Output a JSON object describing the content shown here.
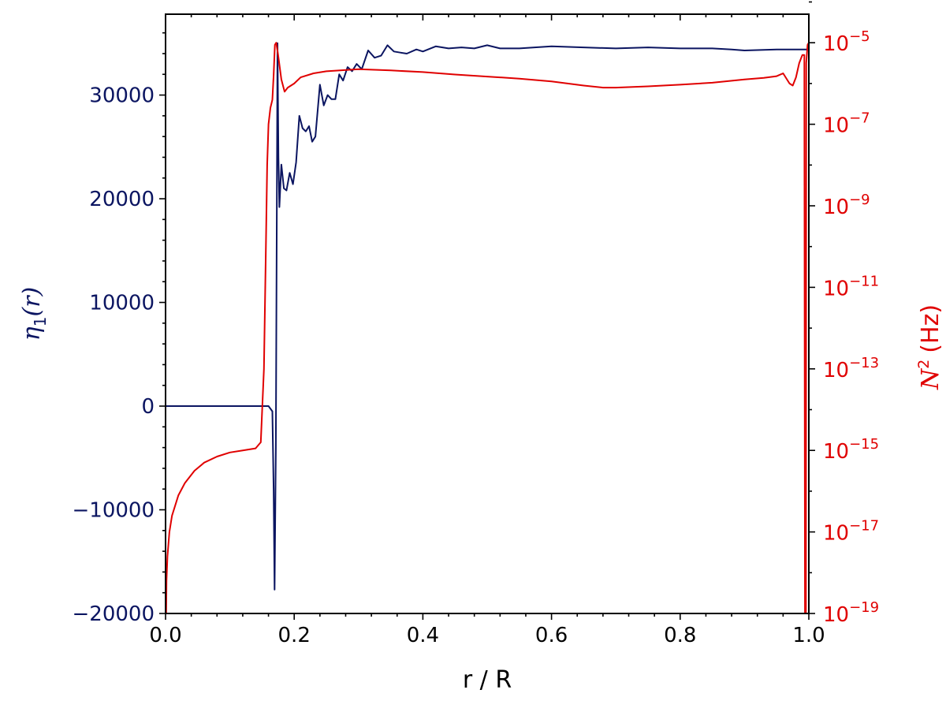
{
  "chart_data": {
    "type": "line",
    "xlabel": "r / R",
    "ylabel_left": {
      "symbol": "η",
      "subscript": "1",
      "arg": "(r)"
    },
    "ylabel_right": {
      "symbol": "N",
      "superscript": "2",
      "unit": "(Hz)"
    },
    "colors": {
      "left": "#0b1561",
      "right": "#e00000"
    },
    "xlim": [
      0.0,
      1.0
    ],
    "ylim_left": [
      -20000,
      37800
    ],
    "ylim_right_log10": [
      -19,
      -4.3
    ],
    "right_scale": "log",
    "grid": false,
    "legend": "none",
    "x_ticks": [
      "0.0",
      "0.2",
      "0.4",
      "0.6",
      "0.8",
      "1.0"
    ],
    "left_ticks": [
      "−20000",
      "−10000",
      "0",
      "10000",
      "20000",
      "30000"
    ],
    "right_ticks": [
      {
        "base": "10",
        "exp": "−19"
      },
      {
        "base": "10",
        "exp": "−17"
      },
      {
        "base": "10",
        "exp": "−15"
      },
      {
        "base": "10",
        "exp": "−13"
      },
      {
        "base": "10",
        "exp": "−11"
      },
      {
        "base": "10",
        "exp": "−9"
      },
      {
        "base": "10",
        "exp": "−7"
      },
      {
        "base": "10",
        "exp": "−5"
      }
    ],
    "series": [
      {
        "axis": "left",
        "points": [
          [
            0.0,
            0
          ],
          [
            0.05,
            0
          ],
          [
            0.1,
            0
          ],
          [
            0.16,
            0
          ],
          [
            0.166,
            -500
          ],
          [
            0.168,
            -8000
          ],
          [
            0.1695,
            -17700
          ],
          [
            0.1715,
            -4000
          ],
          [
            0.173,
            20000
          ],
          [
            0.174,
            35000
          ],
          [
            0.1755,
            24000
          ],
          [
            0.177,
            19200
          ],
          [
            0.18,
            23300
          ],
          [
            0.184,
            21000
          ],
          [
            0.188,
            20800
          ],
          [
            0.193,
            22500
          ],
          [
            0.198,
            21400
          ],
          [
            0.203,
            23500
          ],
          [
            0.208,
            28000
          ],
          [
            0.213,
            26800
          ],
          [
            0.218,
            26500
          ],
          [
            0.223,
            27000
          ],
          [
            0.228,
            25500
          ],
          [
            0.233,
            26000
          ],
          [
            0.24,
            31000
          ],
          [
            0.246,
            29000
          ],
          [
            0.252,
            30000
          ],
          [
            0.258,
            29600
          ],
          [
            0.264,
            29600
          ],
          [
            0.27,
            32000
          ],
          [
            0.276,
            31400
          ],
          [
            0.283,
            32700
          ],
          [
            0.29,
            32300
          ],
          [
            0.297,
            33000
          ],
          [
            0.305,
            32500
          ],
          [
            0.315,
            34300
          ],
          [
            0.325,
            33600
          ],
          [
            0.335,
            33800
          ],
          [
            0.345,
            34800
          ],
          [
            0.355,
            34200
          ],
          [
            0.365,
            34100
          ],
          [
            0.375,
            34000
          ],
          [
            0.39,
            34400
          ],
          [
            0.4,
            34200
          ],
          [
            0.42,
            34700
          ],
          [
            0.44,
            34500
          ],
          [
            0.46,
            34600
          ],
          [
            0.48,
            34500
          ],
          [
            0.5,
            34800
          ],
          [
            0.52,
            34500
          ],
          [
            0.55,
            34500
          ],
          [
            0.6,
            34700
          ],
          [
            0.65,
            34600
          ],
          [
            0.7,
            34500
          ],
          [
            0.75,
            34600
          ],
          [
            0.8,
            34500
          ],
          [
            0.85,
            34500
          ],
          [
            0.88,
            34400
          ],
          [
            0.9,
            34300
          ],
          [
            0.95,
            34400
          ],
          [
            1.0,
            34400
          ]
        ]
      },
      {
        "axis": "right",
        "log10_points": [
          [
            0.001,
            -19.0
          ],
          [
            0.0015,
            -18.2
          ],
          [
            0.003,
            -17.6
          ],
          [
            0.006,
            -17.0
          ],
          [
            0.01,
            -16.6
          ],
          [
            0.02,
            -16.1
          ],
          [
            0.03,
            -15.8
          ],
          [
            0.045,
            -15.5
          ],
          [
            0.06,
            -15.3
          ],
          [
            0.08,
            -15.15
          ],
          [
            0.1,
            -15.05
          ],
          [
            0.12,
            -15.0
          ],
          [
            0.14,
            -14.95
          ],
          [
            0.148,
            -14.8
          ],
          [
            0.153,
            -13.0
          ],
          [
            0.156,
            -10.0
          ],
          [
            0.158,
            -8.0
          ],
          [
            0.16,
            -7.0
          ],
          [
            0.163,
            -6.6
          ],
          [
            0.166,
            -6.4
          ],
          [
            0.168,
            -5.8
          ],
          [
            0.17,
            -5.05
          ],
          [
            0.172,
            -5.0
          ],
          [
            0.175,
            -5.3
          ],
          [
            0.18,
            -5.9
          ],
          [
            0.185,
            -6.2
          ],
          [
            0.19,
            -6.1
          ],
          [
            0.2,
            -6.0
          ],
          [
            0.21,
            -5.85
          ],
          [
            0.23,
            -5.75
          ],
          [
            0.25,
            -5.7
          ],
          [
            0.3,
            -5.65
          ],
          [
            0.35,
            -5.68
          ],
          [
            0.4,
            -5.72
          ],
          [
            0.45,
            -5.78
          ],
          [
            0.5,
            -5.83
          ],
          [
            0.55,
            -5.88
          ],
          [
            0.6,
            -5.95
          ],
          [
            0.65,
            -6.05
          ],
          [
            0.68,
            -6.1
          ],
          [
            0.7,
            -6.1
          ],
          [
            0.75,
            -6.07
          ],
          [
            0.8,
            -6.03
          ],
          [
            0.85,
            -5.98
          ],
          [
            0.9,
            -5.9
          ],
          [
            0.93,
            -5.86
          ],
          [
            0.95,
            -5.82
          ],
          [
            0.96,
            -5.75
          ],
          [
            0.97,
            -6.0
          ],
          [
            0.975,
            -6.05
          ],
          [
            0.98,
            -5.85
          ],
          [
            0.985,
            -5.5
          ],
          [
            0.99,
            -5.3
          ],
          [
            0.993,
            -5.3
          ],
          [
            0.994,
            -19.0
          ],
          [
            0.9955,
            -19.0
          ],
          [
            0.996,
            -5.5
          ],
          [
            0.998,
            -5.05
          ],
          [
            1.0,
            -5.0
          ]
        ]
      }
    ]
  }
}
